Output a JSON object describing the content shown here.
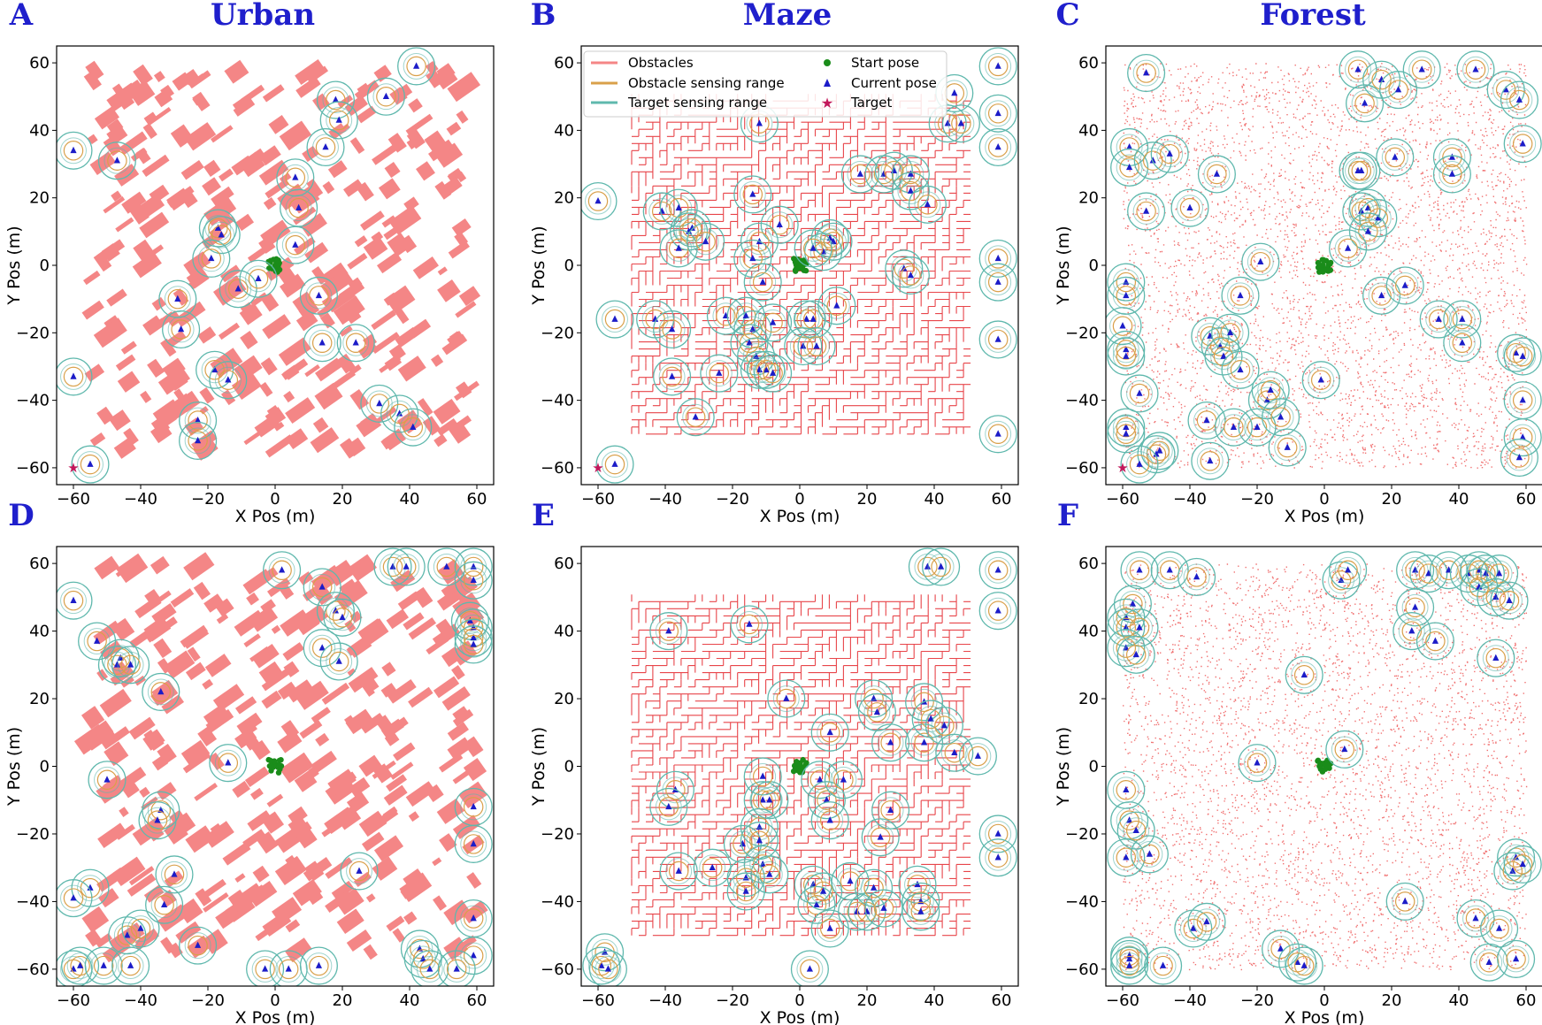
{
  "colors": {
    "obstacle": "#f48686",
    "obstacle_line": "#f08080",
    "maze_wall": "#e8454a",
    "forest_dot": "#f07070",
    "obstacle_range": "#d9a04a",
    "target_range": "#5fb8ad",
    "start": "#1a8c1a",
    "current": "#1c1cc8",
    "target": "#c2185b",
    "title": "#1f1fcc"
  },
  "legend": {
    "obstacles": "Obstacles",
    "obstacle_range": "Obstacle sensing range",
    "target_range": "Target sensing range",
    "start": "Start pose",
    "current": "Current pose",
    "target": "Target"
  },
  "column_titles": [
    "Urban",
    "Maze",
    "Forest"
  ],
  "chart_data": [
    {
      "panel": "A",
      "environment": "urban",
      "type": "scatter",
      "xlabel": "X Pos (m)",
      "ylabel": "Y Pos (m)",
      "xlim": [
        -65,
        65
      ],
      "ylim": [
        -65,
        65
      ],
      "xticks": [
        -60,
        -40,
        -20,
        0,
        20,
        40,
        60
      ],
      "yticks": [
        -60,
        -40,
        -20,
        0,
        20,
        40,
        60
      ],
      "target": [
        -60,
        -60
      ],
      "start_cluster": [
        0,
        0
      ],
      "agents": [
        [
          42,
          59
        ],
        [
          33,
          50
        ],
        [
          18,
          49
        ],
        [
          19,
          43
        ],
        [
          15,
          35
        ],
        [
          -47,
          31
        ],
        [
          -60,
          34
        ],
        [
          6,
          26
        ],
        [
          7,
          17
        ],
        [
          6,
          6
        ],
        [
          -17,
          11
        ],
        [
          -16,
          9
        ],
        [
          -19,
          2
        ],
        [
          -11,
          -7
        ],
        [
          -5,
          -4
        ],
        [
          -29,
          -10
        ],
        [
          -28,
          -19
        ],
        [
          13,
          -9
        ],
        [
          14,
          -23
        ],
        [
          24,
          -23
        ],
        [
          -18,
          -31
        ],
        [
          -14,
          -34
        ],
        [
          -60,
          -33
        ],
        [
          31,
          -41
        ],
        [
          37,
          -44
        ],
        [
          41,
          -48
        ],
        [
          -23,
          -46
        ],
        [
          -23,
          -52
        ],
        [
          -55,
          -59
        ]
      ]
    },
    {
      "panel": "B",
      "environment": "maze",
      "type": "scatter",
      "xlabel": "X Pos (m)",
      "ylabel": "Y Pos (m)",
      "xlim": [
        -65,
        65
      ],
      "ylim": [
        -65,
        65
      ],
      "xticks": [
        -60,
        -40,
        -20,
        0,
        20,
        40,
        60
      ],
      "yticks": [
        -60,
        -40,
        -20,
        0,
        20,
        40,
        60
      ],
      "target": [
        -60,
        -60
      ],
      "start_cluster": [
        0,
        0
      ],
      "agents": [
        [
          59,
          59
        ],
        [
          59,
          45
        ],
        [
          59,
          35
        ],
        [
          -60,
          19
        ],
        [
          -12,
          42
        ],
        [
          44,
          42
        ],
        [
          46,
          51
        ],
        [
          48,
          42
        ],
        [
          -41,
          16
        ],
        [
          -36,
          17
        ],
        [
          -33,
          10
        ],
        [
          -32,
          11
        ],
        [
          -36,
          5
        ],
        [
          -28,
          7
        ],
        [
          -14,
          21
        ],
        [
          -6,
          12
        ],
        [
          -12,
          7
        ],
        [
          -14,
          2
        ],
        [
          -11,
          -5
        ],
        [
          9,
          8
        ],
        [
          10,
          7
        ],
        [
          7,
          4
        ],
        [
          4,
          5
        ],
        [
          18,
          27
        ],
        [
          25,
          27
        ],
        [
          28,
          28
        ],
        [
          33,
          27
        ],
        [
          33,
          22
        ],
        [
          38,
          18
        ],
        [
          31,
          -1
        ],
        [
          33,
          -3
        ],
        [
          59,
          2
        ],
        [
          59,
          -5
        ],
        [
          59,
          -22
        ],
        [
          -55,
          -16
        ],
        [
          -43,
          -16
        ],
        [
          -38,
          -19
        ],
        [
          -22,
          -15
        ],
        [
          -16,
          -15
        ],
        [
          -14,
          -19
        ],
        [
          -15,
          -23
        ],
        [
          -13,
          -27
        ],
        [
          -8,
          -17
        ],
        [
          -12,
          -31
        ],
        [
          -10,
          -31
        ],
        [
          -8,
          -32
        ],
        [
          -24,
          -32
        ],
        [
          -38,
          -33
        ],
        [
          -31,
          -45
        ],
        [
          2,
          -16
        ],
        [
          4,
          -16
        ],
        [
          1,
          -24
        ],
        [
          5,
          -24
        ],
        [
          11,
          -12
        ],
        [
          59,
          -50
        ],
        [
          -55,
          -59
        ]
      ]
    },
    {
      "panel": "C",
      "environment": "forest",
      "type": "scatter",
      "xlabel": "X Pos (m)",
      "ylabel": "Y Pos (m)",
      "xlim": [
        -65,
        65
      ],
      "ylim": [
        -65,
        65
      ],
      "xticks": [
        -60,
        -40,
        -20,
        0,
        20,
        40,
        60
      ],
      "yticks": [
        -60,
        -40,
        -20,
        0,
        20,
        40,
        60
      ],
      "target": [
        -60,
        -60
      ],
      "start_cluster": [
        0,
        0
      ],
      "agents": [
        [
          -53,
          57
        ],
        [
          -58,
          35
        ],
        [
          -58,
          29
        ],
        [
          -51,
          31
        ],
        [
          -46,
          33
        ],
        [
          -53,
          16
        ],
        [
          -40,
          17
        ],
        [
          -32,
          27
        ],
        [
          10,
          58
        ],
        [
          17,
          55
        ],
        [
          12,
          48
        ],
        [
          22,
          52
        ],
        [
          29,
          58
        ],
        [
          45,
          58
        ],
        [
          54,
          52
        ],
        [
          58,
          49
        ],
        [
          59,
          36
        ],
        [
          10,
          28
        ],
        [
          11,
          28
        ],
        [
          21,
          32
        ],
        [
          38,
          32
        ],
        [
          38,
          27
        ],
        [
          13,
          17
        ],
        [
          11,
          16
        ],
        [
          16,
          14
        ],
        [
          13,
          10
        ],
        [
          7,
          5
        ],
        [
          -19,
          1
        ],
        [
          -25,
          -9
        ],
        [
          -59,
          -5
        ],
        [
          -59,
          -9
        ],
        [
          -60,
          -18
        ],
        [
          -59,
          -25
        ],
        [
          -59,
          -27
        ],
        [
          -34,
          -21
        ],
        [
          -31,
          -24
        ],
        [
          -28,
          -20
        ],
        [
          -30,
          -27
        ],
        [
          -25,
          -31
        ],
        [
          -17,
          -40
        ],
        [
          -16,
          -37
        ],
        [
          -20,
          -48
        ],
        [
          -13,
          -45
        ],
        [
          -11,
          -54
        ],
        [
          17,
          -9
        ],
        [
          24,
          -6
        ],
        [
          34,
          -16
        ],
        [
          41,
          -16
        ],
        [
          41,
          -23
        ],
        [
          -1,
          -34
        ],
        [
          -55,
          -38
        ],
        [
          -59,
          -48
        ],
        [
          -59,
          -50
        ],
        [
          -50,
          -56
        ],
        [
          -49,
          -55
        ],
        [
          -34,
          -58
        ],
        [
          -35,
          -46
        ],
        [
          -27,
          -48
        ],
        [
          57,
          -26
        ],
        [
          59,
          -27
        ],
        [
          59,
          -40
        ],
        [
          59,
          -51
        ],
        [
          58,
          -57
        ],
        [
          -55,
          -59
        ]
      ]
    },
    {
      "panel": "D",
      "environment": "urban",
      "type": "scatter",
      "xlabel": "X Pos (m)",
      "ylabel": "Y Pos (m)",
      "xlim": [
        -65,
        65
      ],
      "ylim": [
        -65,
        65
      ],
      "xticks": [
        -60,
        -40,
        -20,
        0,
        20,
        40,
        60
      ],
      "yticks": [
        -60,
        -40,
        -20,
        0,
        20,
        40,
        60
      ],
      "start_cluster": [
        0,
        0
      ],
      "agents": [
        [
          -60,
          49
        ],
        [
          -53,
          37
        ],
        [
          -46,
          32
        ],
        [
          -47,
          30
        ],
        [
          -43,
          30
        ],
        [
          -34,
          22
        ],
        [
          -50,
          -4
        ],
        [
          -34,
          -13
        ],
        [
          -35,
          -16
        ],
        [
          -14,
          1
        ],
        [
          -30,
          -32
        ],
        [
          -33,
          -41
        ],
        [
          -55,
          -36
        ],
        [
          -60,
          -39
        ],
        [
          -23,
          -53
        ],
        [
          -44,
          -50
        ],
        [
          -40,
          -48
        ],
        [
          -60,
          -60
        ],
        [
          -58,
          -59
        ],
        [
          -51,
          -59
        ],
        [
          -43,
          -59
        ],
        [
          -3,
          -60
        ],
        [
          4,
          -60
        ],
        [
          2,
          58
        ],
        [
          14,
          53
        ],
        [
          18,
          46
        ],
        [
          20,
          44
        ],
        [
          14,
          35
        ],
        [
          19,
          31
        ],
        [
          25,
          -31
        ],
        [
          13,
          -59
        ],
        [
          35,
          59
        ],
        [
          39,
          59
        ],
        [
          51,
          59
        ],
        [
          59,
          59
        ],
        [
          59,
          55
        ],
        [
          58,
          43
        ],
        [
          59,
          41
        ],
        [
          59,
          38
        ],
        [
          59,
          36
        ],
        [
          59,
          -12
        ],
        [
          59,
          -23
        ],
        [
          59,
          -45
        ],
        [
          59,
          -56
        ],
        [
          43,
          -54
        ],
        [
          44,
          -57
        ],
        [
          46,
          -60
        ],
        [
          54,
          -60
        ]
      ]
    },
    {
      "panel": "E",
      "environment": "maze",
      "type": "scatter",
      "xlabel": "X Pos (m)",
      "ylabel": "Y Pos (m)",
      "xlim": [
        -65,
        65
      ],
      "ylim": [
        -65,
        65
      ],
      "xticks": [
        -60,
        -40,
        -20,
        0,
        20,
        40,
        60
      ],
      "yticks": [
        -60,
        -40,
        -20,
        0,
        20,
        40,
        60
      ],
      "start_cluster": [
        0,
        0
      ],
      "agents": [
        [
          38,
          59
        ],
        [
          42,
          59
        ],
        [
          59,
          58
        ],
        [
          59,
          46
        ],
        [
          -39,
          40
        ],
        [
          -15,
          42
        ],
        [
          -4,
          20
        ],
        [
          9,
          10
        ],
        [
          22,
          20
        ],
        [
          23,
          16
        ],
        [
          27,
          7
        ],
        [
          37,
          19
        ],
        [
          37,
          7
        ],
        [
          39,
          14
        ],
        [
          43,
          12
        ],
        [
          46,
          4
        ],
        [
          53,
          3
        ],
        [
          -37,
          -7
        ],
        [
          -39,
          -12
        ],
        [
          -11,
          -10
        ],
        [
          -9,
          -10
        ],
        [
          -11,
          -3
        ],
        [
          -12,
          -18
        ],
        [
          -17,
          -23
        ],
        [
          -12,
          -22
        ],
        [
          -11,
          -29
        ],
        [
          -9,
          -32
        ],
        [
          -16,
          -33
        ],
        [
          6,
          -4
        ],
        [
          8,
          -10
        ],
        [
          13,
          -4
        ],
        [
          9,
          -16
        ],
        [
          27,
          -13
        ],
        [
          24,
          -21
        ],
        [
          -36,
          -31
        ],
        [
          -26,
          -30
        ],
        [
          -16,
          -37
        ],
        [
          4,
          -35
        ],
        [
          5,
          -41
        ],
        [
          7,
          -37
        ],
        [
          15,
          -34
        ],
        [
          17,
          -43
        ],
        [
          20,
          -43
        ],
        [
          22,
          -36
        ],
        [
          25,
          -42
        ],
        [
          35,
          -35
        ],
        [
          36,
          -40
        ],
        [
          36,
          -43
        ],
        [
          59,
          -20
        ],
        [
          59,
          -27
        ],
        [
          -58,
          -55
        ],
        [
          -59,
          -59
        ],
        [
          -57,
          -60
        ],
        [
          3,
          -60
        ],
        [
          9,
          -48
        ]
      ]
    },
    {
      "panel": "F",
      "environment": "forest",
      "type": "scatter",
      "xlabel": "X Pos (m)",
      "ylabel": "Y Pos (m)",
      "xlim": [
        -65,
        65
      ],
      "ylim": [
        -65,
        65
      ],
      "xticks": [
        -60,
        -40,
        -20,
        0,
        20,
        40,
        60
      ],
      "yticks": [
        -60,
        -40,
        -20,
        0,
        20,
        40,
        60
      ],
      "start_cluster": [
        0,
        0
      ],
      "agents": [
        [
          -55,
          58
        ],
        [
          -46,
          58
        ],
        [
          -38,
          56
        ],
        [
          -57,
          48
        ],
        [
          -59,
          44
        ],
        [
          -59,
          41
        ],
        [
          -55,
          41
        ],
        [
          -59,
          35
        ],
        [
          -56,
          33
        ],
        [
          -6,
          27
        ],
        [
          5,
          55
        ],
        [
          7,
          58
        ],
        [
          27,
          58
        ],
        [
          31,
          57
        ],
        [
          37,
          58
        ],
        [
          43,
          57
        ],
        [
          46,
          58
        ],
        [
          48,
          57
        ],
        [
          52,
          57
        ],
        [
          46,
          53
        ],
        [
          51,
          50
        ],
        [
          55,
          49
        ],
        [
          27,
          47
        ],
        [
          26,
          40
        ],
        [
          33,
          37
        ],
        [
          51,
          32
        ],
        [
          -20,
          1
        ],
        [
          6,
          5
        ],
        [
          -59,
          -7
        ],
        [
          -58,
          -16
        ],
        [
          -59,
          -27
        ],
        [
          -52,
          -26
        ],
        [
          -56,
          -19
        ],
        [
          -58,
          -56
        ],
        [
          -58,
          -57
        ],
        [
          -58,
          -59
        ],
        [
          -48,
          -59
        ],
        [
          -39,
          -48
        ],
        [
          -35,
          -46
        ],
        [
          -13,
          -54
        ],
        [
          -8,
          -58
        ],
        [
          -6,
          -59
        ],
        [
          24,
          -40
        ],
        [
          45,
          -45
        ],
        [
          52,
          -48
        ],
        [
          57,
          -27
        ],
        [
          56,
          -31
        ],
        [
          59,
          -29
        ],
        [
          49,
          -58
        ],
        [
          57,
          -57
        ]
      ]
    }
  ]
}
